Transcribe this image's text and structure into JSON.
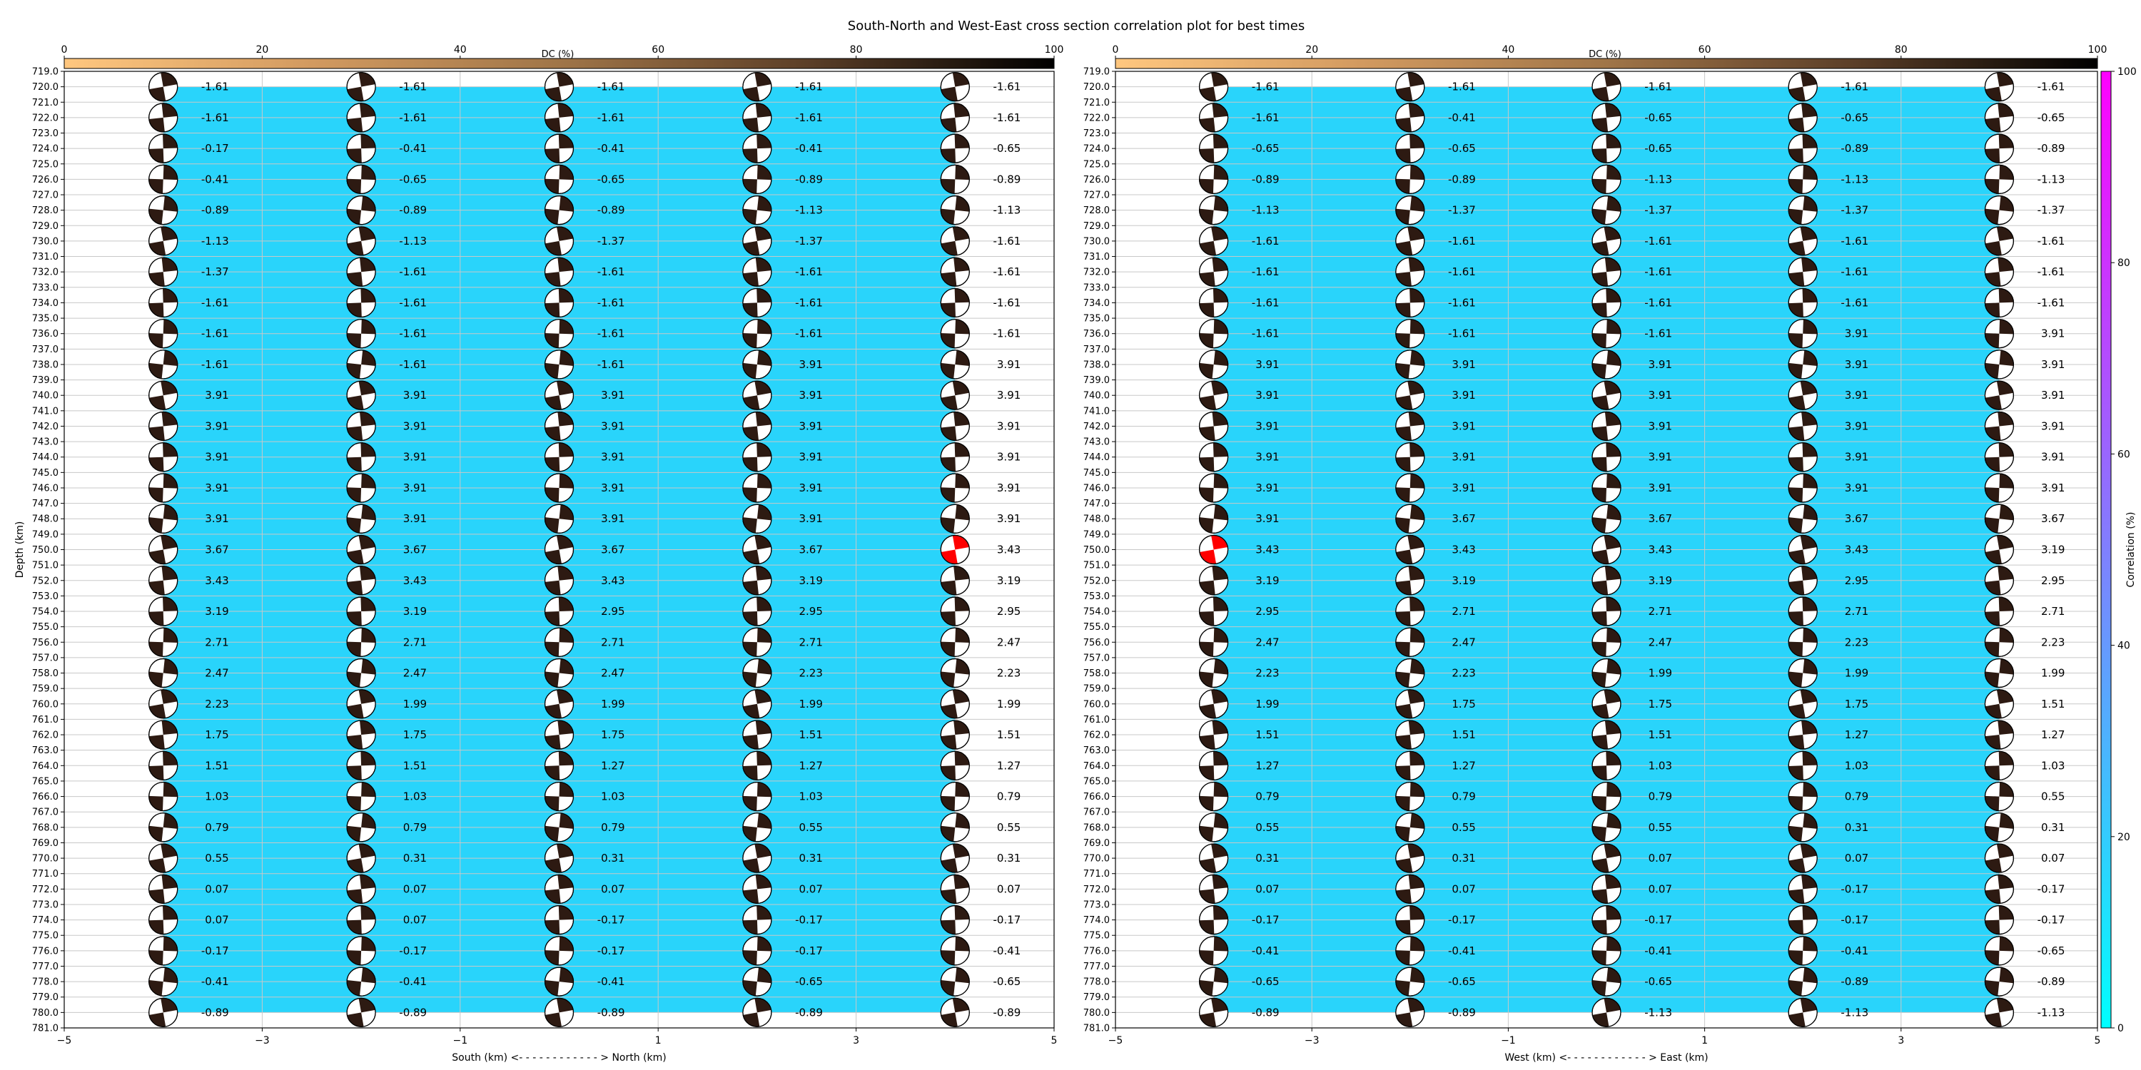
{
  "title": "South-North and West-East cross section correlation plot for best times",
  "colors": {
    "background_fill": "#29d4fb",
    "best_beachball": "#ff0000",
    "beachball_dark": "#2d1a12",
    "grid": "#c8c8c8"
  },
  "dc_colorbar": {
    "label": "DC (%)",
    "range": [
      0,
      100
    ],
    "ticks": [
      "0",
      "20",
      "40",
      "60",
      "80",
      "100"
    ],
    "colormap": "copper_r"
  },
  "correlation_colorbar": {
    "label": "Correlation (%)",
    "range": [
      0,
      100
    ],
    "ticks": [
      "0",
      "20",
      "40",
      "60",
      "80",
      "100"
    ],
    "colormap": "cool"
  },
  "chart_data": [
    {
      "type": "scatter",
      "xlabel": "South (km) <- - - - - - - - - - - - > North (km)",
      "ylabel": "Depth (km)",
      "xlim": [
        -5,
        5
      ],
      "ylim": [
        781,
        719
      ],
      "x_ticks": [
        "−5",
        "−3",
        "−1",
        "1",
        "3",
        "5"
      ],
      "x_positions": [
        -4,
        -2,
        0,
        2,
        4
      ],
      "depths": [
        720,
        722,
        724,
        726,
        728,
        730,
        732,
        734,
        736,
        738,
        740,
        742,
        744,
        746,
        748,
        750,
        752,
        754,
        756,
        758,
        760,
        762,
        764,
        766,
        768,
        770,
        772,
        774,
        776,
        778,
        780
      ],
      "best": {
        "x": 4,
        "depth": 750
      },
      "labels": [
        [
          "-1.61",
          "-1.61",
          "-1.61",
          "-1.61",
          "-1.61"
        ],
        [
          "-1.61",
          "-1.61",
          "-1.61",
          "-1.61",
          "-1.61"
        ],
        [
          "-0.17",
          "-0.41",
          "-0.41",
          "-0.41",
          "-0.65"
        ],
        [
          "-0.41",
          "-0.65",
          "-0.65",
          "-0.89",
          "-0.89"
        ],
        [
          "-0.89",
          "-0.89",
          "-0.89",
          "-1.13",
          "-1.13"
        ],
        [
          "-1.13",
          "-1.13",
          "-1.37",
          "-1.37",
          "-1.61"
        ],
        [
          "-1.37",
          "-1.61",
          "-1.61",
          "-1.61",
          "-1.61"
        ],
        [
          "-1.61",
          "-1.61",
          "-1.61",
          "-1.61",
          "-1.61"
        ],
        [
          "-1.61",
          "-1.61",
          "-1.61",
          "-1.61",
          "-1.61"
        ],
        [
          "-1.61",
          "-1.61",
          "-1.61",
          "3.91",
          "3.91"
        ],
        [
          "3.91",
          "3.91",
          "3.91",
          "3.91",
          "3.91"
        ],
        [
          "3.91",
          "3.91",
          "3.91",
          "3.91",
          "3.91"
        ],
        [
          "3.91",
          "3.91",
          "3.91",
          "3.91",
          "3.91"
        ],
        [
          "3.91",
          "3.91",
          "3.91",
          "3.91",
          "3.91"
        ],
        [
          "3.91",
          "3.91",
          "3.91",
          "3.91",
          "3.91"
        ],
        [
          "3.67",
          "3.67",
          "3.67",
          "3.67",
          "3.43"
        ],
        [
          "3.43",
          "3.43",
          "3.43",
          "3.19",
          "3.19"
        ],
        [
          "3.19",
          "3.19",
          "2.95",
          "2.95",
          "2.95"
        ],
        [
          "2.71",
          "2.71",
          "2.71",
          "2.71",
          "2.47"
        ],
        [
          "2.47",
          "2.47",
          "2.47",
          "2.23",
          "2.23"
        ],
        [
          "2.23",
          "1.99",
          "1.99",
          "1.99",
          "1.99"
        ],
        [
          "1.75",
          "1.75",
          "1.75",
          "1.51",
          "1.51"
        ],
        [
          "1.51",
          "1.51",
          "1.27",
          "1.27",
          "1.27"
        ],
        [
          "1.03",
          "1.03",
          "1.03",
          "1.03",
          "0.79"
        ],
        [
          "0.79",
          "0.79",
          "0.79",
          "0.55",
          "0.55"
        ],
        [
          "0.55",
          "0.31",
          "0.31",
          "0.31",
          "0.31"
        ],
        [
          "0.07",
          "0.07",
          "0.07",
          "0.07",
          "0.07"
        ],
        [
          "0.07",
          "0.07",
          "-0.17",
          "-0.17",
          "-0.17"
        ],
        [
          "-0.17",
          "-0.17",
          "-0.17",
          "-0.17",
          "-0.41"
        ],
        [
          "-0.41",
          "-0.41",
          "-0.41",
          "-0.65",
          "-0.65"
        ],
        [
          "-0.89",
          "-0.89",
          "-0.89",
          "-0.89",
          "-0.89"
        ]
      ]
    },
    {
      "type": "scatter",
      "xlabel": "West (km) <- - - - - - - - - - - - > East (km)",
      "ylabel": "",
      "xlim": [
        -5,
        5
      ],
      "ylim": [
        781,
        719
      ],
      "x_ticks": [
        "−5",
        "−3",
        "−1",
        "1",
        "3",
        "5"
      ],
      "x_positions": [
        -4,
        -2,
        0,
        2,
        4
      ],
      "depths": [
        720,
        722,
        724,
        726,
        728,
        730,
        732,
        734,
        736,
        738,
        740,
        742,
        744,
        746,
        748,
        750,
        752,
        754,
        756,
        758,
        760,
        762,
        764,
        766,
        768,
        770,
        772,
        774,
        776,
        778,
        780
      ],
      "best": {
        "x": -4,
        "depth": 750
      },
      "labels": [
        [
          "-1.61",
          "-1.61",
          "-1.61",
          "-1.61",
          "-1.61"
        ],
        [
          "-1.61",
          "-0.41",
          "-0.65",
          "-0.65",
          "-0.65"
        ],
        [
          "-0.65",
          "-0.65",
          "-0.65",
          "-0.89",
          "-0.89"
        ],
        [
          "-0.89",
          "-0.89",
          "-1.13",
          "-1.13",
          "-1.13"
        ],
        [
          "-1.13",
          "-1.37",
          "-1.37",
          "-1.37",
          "-1.37"
        ],
        [
          "-1.61",
          "-1.61",
          "-1.61",
          "-1.61",
          "-1.61"
        ],
        [
          "-1.61",
          "-1.61",
          "-1.61",
          "-1.61",
          "-1.61"
        ],
        [
          "-1.61",
          "-1.61",
          "-1.61",
          "-1.61",
          "-1.61"
        ],
        [
          "-1.61",
          "-1.61",
          "-1.61",
          "3.91",
          "3.91"
        ],
        [
          "3.91",
          "3.91",
          "3.91",
          "3.91",
          "3.91"
        ],
        [
          "3.91",
          "3.91",
          "3.91",
          "3.91",
          "3.91"
        ],
        [
          "3.91",
          "3.91",
          "3.91",
          "3.91",
          "3.91"
        ],
        [
          "3.91",
          "3.91",
          "3.91",
          "3.91",
          "3.91"
        ],
        [
          "3.91",
          "3.91",
          "3.91",
          "3.91",
          "3.91"
        ],
        [
          "3.91",
          "3.67",
          "3.67",
          "3.67",
          "3.67"
        ],
        [
          "3.43",
          "3.43",
          "3.43",
          "3.43",
          "3.19"
        ],
        [
          "3.19",
          "3.19",
          "3.19",
          "2.95",
          "2.95"
        ],
        [
          "2.95",
          "2.71",
          "2.71",
          "2.71",
          "2.71"
        ],
        [
          "2.47",
          "2.47",
          "2.47",
          "2.23",
          "2.23"
        ],
        [
          "2.23",
          "2.23",
          "1.99",
          "1.99",
          "1.99"
        ],
        [
          "1.99",
          "1.75",
          "1.75",
          "1.75",
          "1.51"
        ],
        [
          "1.51",
          "1.51",
          "1.51",
          "1.27",
          "1.27"
        ],
        [
          "1.27",
          "1.27",
          "1.03",
          "1.03",
          "1.03"
        ],
        [
          "0.79",
          "0.79",
          "0.79",
          "0.79",
          "0.55"
        ],
        [
          "0.55",
          "0.55",
          "0.55",
          "0.31",
          "0.31"
        ],
        [
          "0.31",
          "0.31",
          "0.07",
          "0.07",
          "0.07"
        ],
        [
          "0.07",
          "0.07",
          "0.07",
          "-0.17",
          "-0.17"
        ],
        [
          "-0.17",
          "-0.17",
          "-0.17",
          "-0.17",
          "-0.17"
        ],
        [
          "-0.41",
          "-0.41",
          "-0.41",
          "-0.41",
          "-0.65"
        ],
        [
          "-0.65",
          "-0.65",
          "-0.65",
          "-0.89",
          "-0.89"
        ],
        [
          "-0.89",
          "-0.89",
          "-1.13",
          "-1.13",
          "-1.13"
        ]
      ]
    }
  ]
}
